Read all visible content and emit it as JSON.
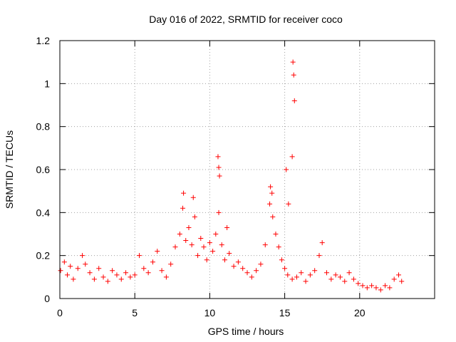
{
  "colors": {
    "series": "#ff0000",
    "grid": "#a0a0a0",
    "axes": "#000000",
    "background": "#ffffff"
  },
  "chart_data": {
    "type": "scatter",
    "marker": "plus",
    "title": "Day 016 of 2022, SRMTID for receiver coco",
    "xlabel": "GPS time / hours",
    "ylabel": "SRMTID / TECUs",
    "xlim": [
      0,
      25
    ],
    "ylim": [
      0,
      1.2
    ],
    "grid": true,
    "xticks": [
      0,
      5,
      10,
      15,
      20
    ],
    "xtick_labels": [
      "0",
      "5",
      "10",
      "15",
      "20"
    ],
    "yticks": [
      0,
      0.2,
      0.4,
      0.6,
      0.8,
      1.0,
      1.2
    ],
    "ytick_labels": [
      "0",
      "0.2",
      "0.4",
      "0.6",
      "0.8",
      "1",
      "1.2"
    ],
    "series": [
      {
        "name": "SRMTID",
        "color": "#ff0000",
        "x": [
          0.05,
          0.3,
          0.5,
          0.7,
          0.9,
          1.2,
          1.5,
          1.7,
          2.0,
          2.3,
          2.6,
          2.9,
          3.2,
          3.5,
          3.8,
          4.1,
          4.4,
          4.7,
          5.0,
          5.3,
          5.6,
          5.9,
          6.2,
          6.5,
          6.8,
          7.1,
          7.4,
          7.7,
          8.0,
          8.2,
          8.4,
          8.6,
          8.8,
          9.0,
          9.2,
          9.4,
          9.6,
          9.8,
          10.0,
          10.2,
          10.4,
          10.6,
          10.8,
          11.0,
          11.3,
          11.6,
          11.9,
          12.2,
          12.5,
          12.8,
          13.1,
          13.4,
          13.7,
          14.0,
          14.2,
          14.4,
          14.6,
          14.8,
          15.0,
          15.2,
          15.5,
          15.8,
          16.1,
          16.4,
          16.7,
          17.0,
          17.3,
          17.5,
          17.8,
          18.1,
          18.4,
          18.7,
          19.0,
          19.3,
          19.6,
          19.9,
          20.2,
          20.5,
          20.8,
          21.1,
          21.4,
          21.7,
          22.0,
          22.3,
          22.6,
          22.8,
          10.55,
          10.6,
          10.65,
          14.05,
          14.15,
          15.1,
          15.25,
          15.55,
          15.6,
          15.65,
          15.5,
          8.25,
          8.9,
          11.15
        ],
        "y": [
          0.13,
          0.17,
          0.11,
          0.15,
          0.09,
          0.14,
          0.2,
          0.16,
          0.12,
          0.09,
          0.14,
          0.1,
          0.08,
          0.13,
          0.11,
          0.09,
          0.12,
          0.1,
          0.11,
          0.2,
          0.14,
          0.12,
          0.17,
          0.22,
          0.13,
          0.1,
          0.16,
          0.24,
          0.3,
          0.42,
          0.27,
          0.33,
          0.25,
          0.38,
          0.2,
          0.28,
          0.24,
          0.18,
          0.26,
          0.22,
          0.3,
          0.4,
          0.25,
          0.18,
          0.21,
          0.15,
          0.17,
          0.14,
          0.12,
          0.1,
          0.13,
          0.16,
          0.25,
          0.44,
          0.38,
          0.3,
          0.24,
          0.18,
          0.14,
          0.11,
          0.09,
          0.1,
          0.12,
          0.08,
          0.11,
          0.13,
          0.2,
          0.26,
          0.12,
          0.09,
          0.11,
          0.1,
          0.08,
          0.12,
          0.09,
          0.07,
          0.06,
          0.05,
          0.06,
          0.05,
          0.04,
          0.06,
          0.05,
          0.09,
          0.11,
          0.08,
          0.66,
          0.61,
          0.57,
          0.52,
          0.49,
          0.6,
          0.44,
          1.1,
          1.04,
          0.92,
          0.66,
          0.49,
          0.47,
          0.33
        ]
      }
    ]
  }
}
